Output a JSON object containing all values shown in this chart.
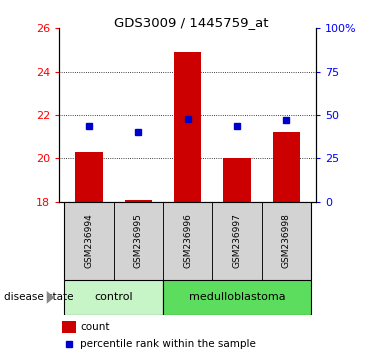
{
  "title": "GDS3009 / 1445759_at",
  "samples": [
    "GSM236994",
    "GSM236995",
    "GSM236996",
    "GSM236997",
    "GSM236998"
  ],
  "bar_values": [
    20.3,
    18.1,
    24.9,
    20.0,
    21.2
  ],
  "bar_base": 18.0,
  "percentile_values_left": [
    21.5,
    21.2,
    21.8,
    21.5,
    21.78
  ],
  "ylim_left": [
    18,
    26
  ],
  "ylim_right": [
    0,
    100
  ],
  "yticks_left": [
    18,
    20,
    22,
    24,
    26
  ],
  "yticks_right": [
    0,
    25,
    50,
    75,
    100
  ],
  "ytick_labels_right": [
    "0",
    "25",
    "50",
    "75",
    "100%"
  ],
  "bar_color": "#cc0000",
  "percentile_color": "#0000cc",
  "grid_color": "#000000",
  "group_labels": [
    "control",
    "medulloblastoma"
  ],
  "group_ranges": [
    [
      0,
      2
    ],
    [
      2,
      5
    ]
  ],
  "group_colors_light": [
    "#c8f5c8",
    "#5ddd5d"
  ],
  "disease_state_label": "disease state",
  "legend_count_label": "count",
  "legend_percentile_label": "percentile rank within the sample",
  "bar_width": 0.55,
  "fig_width": 3.83,
  "fig_height": 3.54,
  "dpi": 100
}
